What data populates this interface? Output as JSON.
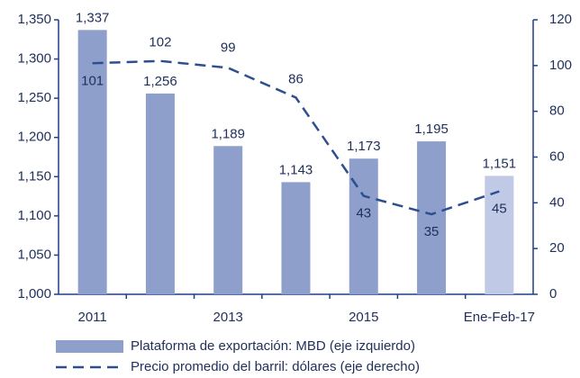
{
  "chart_data": {
    "type": "bar_line",
    "categories": [
      "2011",
      null,
      "2013",
      null,
      "2015",
      null,
      "Ene-Feb-17"
    ],
    "series": [
      {
        "name": "Plataforma de exportación: MBD (eje izquierdo)",
        "type": "bar",
        "color": "#8f9fcc",
        "colors": [
          "#8f9fcc",
          "#8f9fcc",
          "#8f9fcc",
          "#8f9fcc",
          "#8f9fcc",
          "#8f9fcc",
          "#c0c9e5"
        ],
        "values": [
          1337,
          1256,
          1189,
          1143,
          1173,
          1195,
          1151
        ],
        "value_labels": [
          "1,337",
          "1,256",
          "1,189",
          "1,143",
          "1,173",
          "1,195",
          "1,151"
        ]
      },
      {
        "name": "Precio promedio del barril: dólares (eje derecho)",
        "type": "line",
        "color": "#2e4f8f",
        "axis": "y2",
        "values": [
          101,
          102,
          99,
          86,
          43,
          35,
          45
        ]
      }
    ],
    "ylim": [
      1000,
      1350
    ],
    "yticks": [
      {
        "value": 1000,
        "label": "1,000"
      },
      {
        "value": 1050,
        "label": "1,050"
      },
      {
        "value": 1100,
        "label": "1,100"
      },
      {
        "value": 1150,
        "label": "1,150"
      },
      {
        "value": 1200,
        "label": "1,200"
      },
      {
        "value": 1250,
        "label": "1,250"
      },
      {
        "value": 1300,
        "label": "1,300"
      },
      {
        "value": 1350,
        "label": "1,350"
      }
    ],
    "y2lim": [
      0,
      120
    ],
    "y2ticks": [
      0,
      20,
      40,
      60,
      80,
      100,
      120
    ]
  }
}
